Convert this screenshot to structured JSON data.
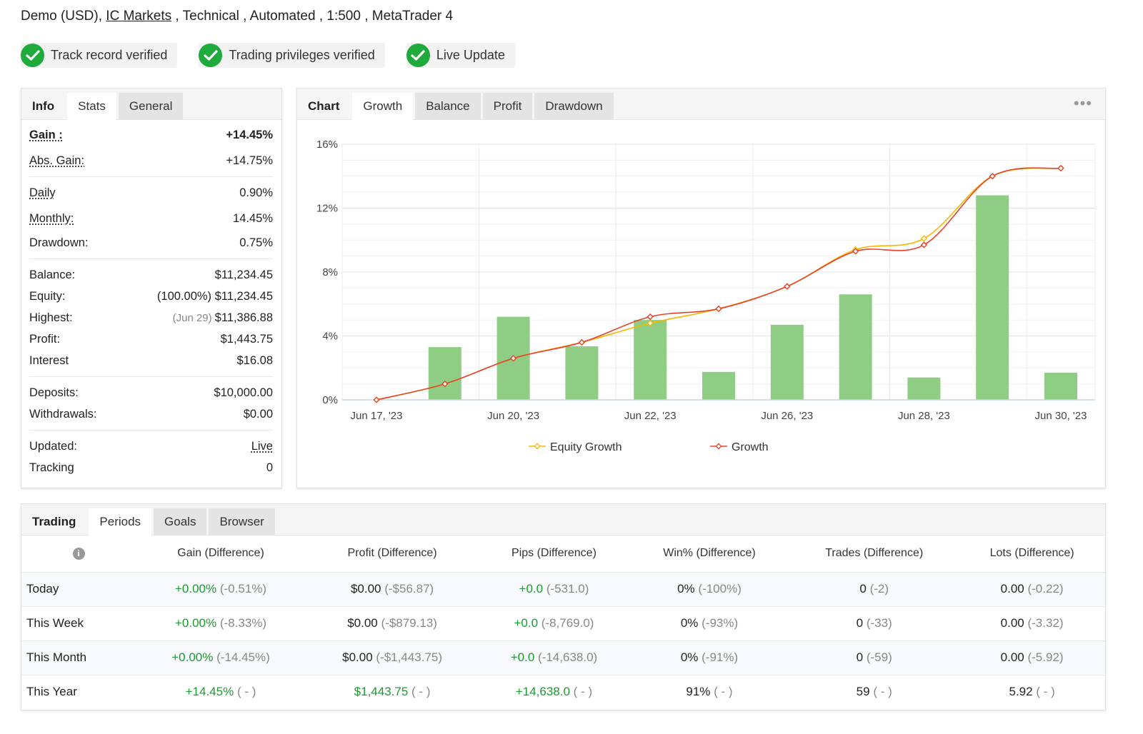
{
  "header": {
    "account_type": "Demo (USD), ",
    "broker": "IC Markets",
    "rest": " , Technical , Automated , 1:500 , MetaTrader 4"
  },
  "badges": [
    {
      "label": "Track record verified"
    },
    {
      "label": "Trading privileges verified"
    },
    {
      "label": "Live Update"
    }
  ],
  "info_panel": {
    "tabs": {
      "title": "Info",
      "stats": "Stats",
      "general": "General"
    },
    "gain": {
      "label": "Gain :",
      "value": "+14.45%"
    },
    "abs_gain": {
      "label": "Abs. Gain:",
      "value": "+14.75%"
    },
    "daily": {
      "label": "Daily",
      "value": "0.90%"
    },
    "monthly": {
      "label": "Monthly:",
      "value": "14.45%"
    },
    "drawdown": {
      "label": "Drawdown:",
      "value": "0.75%"
    },
    "balance": {
      "label": "Balance:",
      "value": "$11,234.45"
    },
    "equity": {
      "label": "Equity:",
      "value": "(100.00%) $11,234.45"
    },
    "highest": {
      "label": "Highest:",
      "date": "(Jun 29)",
      "value": "$11,386.88"
    },
    "profit": {
      "label": "Profit:",
      "value": "$1,443.75"
    },
    "interest": {
      "label": "Interest",
      "value": "$16.08"
    },
    "deposits": {
      "label": "Deposits:",
      "value": "$10,000.00"
    },
    "withdrawals": {
      "label": "Withdrawals:",
      "value": "$0.00"
    },
    "updated": {
      "label": "Updated:",
      "value": "Live"
    },
    "tracking": {
      "label": "Tracking",
      "value": "0"
    }
  },
  "chart_panel": {
    "tabs": {
      "title": "Chart",
      "growth": "Growth",
      "balance": "Balance",
      "profit": "Profit",
      "drawdown": "Drawdown"
    },
    "more_icon": "more-dots-icon"
  },
  "chart_data": {
    "type": "line",
    "title": "",
    "xlabel": "",
    "ylabel": "",
    "y_tick_labels": [
      "0%",
      "4%",
      "8%",
      "12%",
      "16%"
    ],
    "ylim": [
      0,
      16
    ],
    "x_tick_labels": [
      "Jun 17, '23",
      "Jun 20, '23",
      "Jun 22, '23",
      "Jun 26, '23",
      "Jun 28, '23",
      "Jun 30, '23"
    ],
    "legend": [
      {
        "name": "Equity Growth",
        "color": "#f5b800"
      },
      {
        "name": "Growth",
        "color": "#e8432a"
      }
    ],
    "legend_position": "bottom",
    "grid": true,
    "bars": {
      "color": "#8fcc84",
      "values": [
        3.3,
        5.2,
        3.35,
        5.0,
        1.75,
        4.7,
        6.6,
        1.4,
        12.8,
        1.7
      ]
    },
    "series": [
      {
        "name": "Equity Growth",
        "values": [
          0.0,
          1.0,
          2.6,
          3.6,
          4.8,
          5.7,
          7.1,
          9.4,
          10.1,
          14.0,
          14.5
        ]
      },
      {
        "name": "Growth",
        "values": [
          0.0,
          1.0,
          2.6,
          3.6,
          5.2,
          5.7,
          7.1,
          9.3,
          9.7,
          14.0,
          14.5
        ]
      }
    ]
  },
  "periods_panel": {
    "tabs": {
      "title": "Trading",
      "periods": "Periods",
      "goals": "Goals",
      "browser": "Browser"
    },
    "columns": [
      "Gain (Difference)",
      "Profit (Difference)",
      "Pips (Difference)",
      "Win% (Difference)",
      "Trades (Difference)",
      "Lots (Difference)"
    ],
    "rows": [
      {
        "period": "Today",
        "gain": "+0.00%",
        "gain_d": "(-0.51%)",
        "profit": "$0.00",
        "profit_d": "(-$56.87)",
        "pips": "+0.0",
        "pips_d": "(-531.0)",
        "win": "0%",
        "win_d": "(-100%)",
        "trades": "0",
        "trades_d": "(-2)",
        "lots": "0.00",
        "lots_d": "(-0.22)"
      },
      {
        "period": "This Week",
        "gain": "+0.00%",
        "gain_d": "(-8.33%)",
        "profit": "$0.00",
        "profit_d": "(-$879.13)",
        "pips": "+0.0",
        "pips_d": "(-8,769.0)",
        "win": "0%",
        "win_d": "(-93%)",
        "trades": "0",
        "trades_d": "(-33)",
        "lots": "0.00",
        "lots_d": "(-3.32)"
      },
      {
        "period": "This Month",
        "gain": "+0.00%",
        "gain_d": "(-14.45%)",
        "profit": "$0.00",
        "profit_d": "(-$1,443.75)",
        "pips": "+0.0",
        "pips_d": "(-14,638.0)",
        "win": "0%",
        "win_d": "(-91%)",
        "trades": "0",
        "trades_d": "(-59)",
        "lots": "0.00",
        "lots_d": "(-5.92)"
      },
      {
        "period": "This Year",
        "gain": "+14.45%",
        "gain_d": "( - )",
        "profit": "$1,443.75",
        "profit_d": "( - )",
        "pips": "+14,638.0",
        "pips_d": "( - )",
        "win": "91%",
        "win_d": "( - )",
        "trades": "59",
        "trades_d": "( - )",
        "lots": "5.92",
        "lots_d": "( - )"
      }
    ]
  }
}
